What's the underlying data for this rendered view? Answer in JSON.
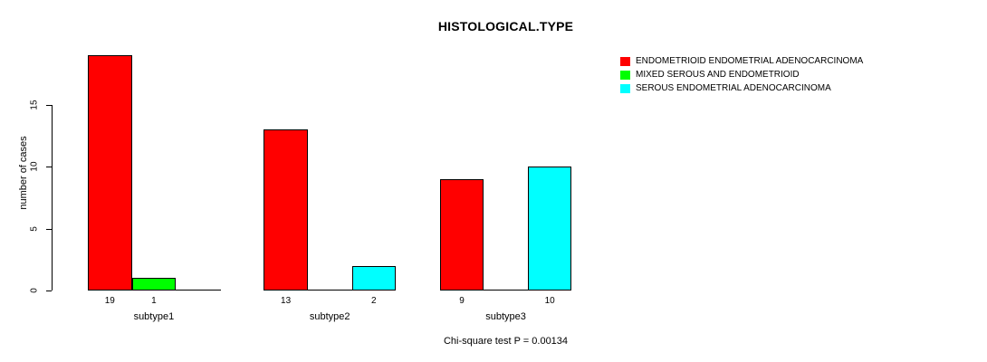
{
  "chart_data": {
    "type": "bar",
    "title": "HISTOLOGICAL.TYPE",
    "categories": [
      "subtype1",
      "subtype2",
      "subtype3"
    ],
    "series": [
      {
        "name": "ENDOMETRIOID ENDOMETRIAL ADENOCARCINOMA",
        "color": "#ff0000",
        "values": [
          19,
          13,
          9
        ]
      },
      {
        "name": "MIXED SEROUS AND ENDOMETRIOID",
        "color": "#00ff00",
        "values": [
          1,
          0,
          0
        ]
      },
      {
        "name": "SEROUS ENDOMETRIAL ADENOCARCINOMA",
        "color": "#00ffff",
        "values": [
          0,
          2,
          10
        ]
      }
    ],
    "xlabel": "",
    "ylabel": "number of cases",
    "yticks": [
      0,
      5,
      10,
      15
    ],
    "ylim": [
      0,
      15
    ],
    "grid": false,
    "legend_position": "top-right",
    "bar_value_labels_shown": true,
    "zero_bars_drawn_as_flat_line": true,
    "annotation": "Chi-square test P = 0.00134"
  }
}
